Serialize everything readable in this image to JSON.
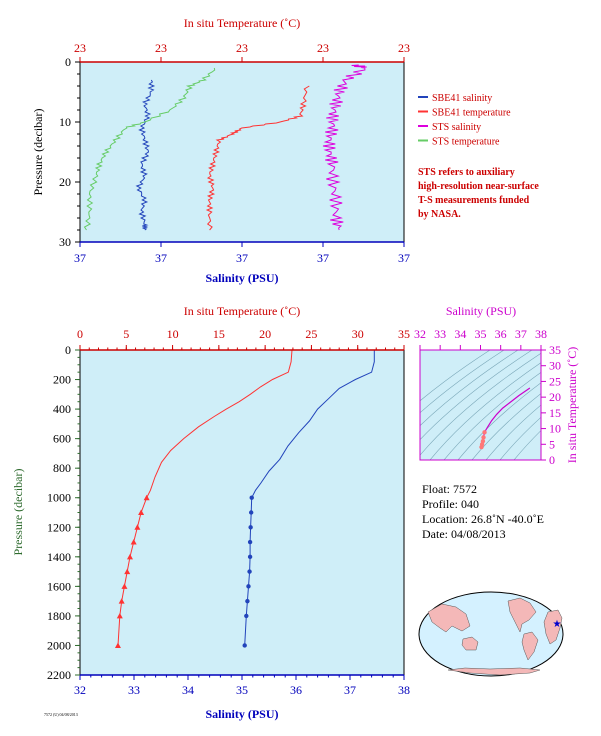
{
  "colors": {
    "plot_bg": "#cfeef8",
    "temp_axis": "#cc0000",
    "sal_axis": "#0000bb",
    "pressure_label": "#2e6b2e",
    "magenta": "#cc00cc",
    "sbe_salinity": "#2244bb",
    "sbe_temperature": "#ff3333",
    "sts_salinity": "#dd00dd",
    "sts_temperature": "#66cc66",
    "note": "#cc0000"
  },
  "top": {
    "top_axis_title": "In situ Temperature (˚C)",
    "top_ticks": [
      "23",
      "23",
      "23",
      "23",
      "23"
    ],
    "bottom_axis_title": "Salinity (PSU)",
    "bottom_ticks": [
      "37",
      "37",
      "37",
      "37",
      "37"
    ],
    "y_axis_title": "Pressure (decibar)",
    "y_ticks": [
      "0",
      "10",
      "20",
      "30"
    ],
    "legend": [
      {
        "label": "SBE41 salinity",
        "color": "#2244bb"
      },
      {
        "label": "SBE41 temperature",
        "color": "#ff3333"
      },
      {
        "label": "STS salinity",
        "color": "#dd00dd"
      },
      {
        "label": "STS temperature",
        "color": "#66cc66"
      }
    ],
    "note_lines": [
      "STS refers to auxiliary",
      "high-resolution near-surface",
      "T-S measurements funded",
      "by NASA."
    ]
  },
  "bottom": {
    "top_axis_title": "In situ Temperature (˚C)",
    "top_ticks": [
      "0",
      "5",
      "10",
      "15",
      "20",
      "25",
      "30",
      "35"
    ],
    "bottom_axis_title": "Salinity (PSU)",
    "bottom_ticks": [
      "32",
      "33",
      "34",
      "35",
      "36",
      "37",
      "38"
    ],
    "y_axis_title": "Pressure (decibar)",
    "y_ticks": [
      "0",
      "200",
      "400",
      "600",
      "800",
      "1000",
      "1200",
      "1400",
      "1600",
      "1800",
      "2000",
      "2200"
    ]
  },
  "ts": {
    "top_axis_title": "Salinity (PSU)",
    "top_ticks": [
      "32",
      "33",
      "34",
      "35",
      "36",
      "37",
      "38"
    ],
    "right_axis_title": "In situ Temperature (˚C)",
    "right_ticks": [
      "0",
      "5",
      "10",
      "15",
      "20",
      "25",
      "30",
      "35"
    ]
  },
  "info": {
    "float": "Float:  7572",
    "profile": "Profile:  040",
    "location": "Location:  26.8˚N  -40.0˚E",
    "date": "Date:  04/08/2013"
  },
  "footer_tag": "7572 (U) 04/08/2013",
  "chart_data": [
    {
      "type": "line",
      "title": "",
      "xlabel": "Salinity (PSU)",
      "x2label": "In situ Temperature (˚C)",
      "ylabel": "Pressure (decibar)",
      "ylim": [
        30,
        0
      ],
      "series": [
        {
          "name": "SBE41 salinity",
          "x_frac": [
            0.22,
            0.22,
            0.2,
            0.21,
            0.19,
            0.2,
            0.21,
            0.19,
            0.2,
            0.18,
            0.2,
            0.19,
            0.2,
            0.2
          ],
          "y": [
            3,
            5,
            7,
            9,
            11,
            13,
            15,
            17,
            19,
            21,
            23,
            25,
            27,
            28
          ]
        },
        {
          "name": "SBE41 temperature",
          "x_frac": [
            0.7,
            0.69,
            0.68,
            0.62,
            0.5,
            0.47,
            0.43,
            0.42,
            0.41,
            0.4,
            0.41,
            0.4,
            0.4,
            0.4
          ],
          "y": [
            4,
            7,
            9,
            10,
            11,
            12,
            13,
            15,
            17,
            19,
            21,
            23,
            25,
            28
          ]
        },
        {
          "name": "STS salinity",
          "x_frac": [
            0.85,
            0.88,
            0.82,
            0.8,
            0.79,
            0.78,
            0.78,
            0.77,
            0.77,
            0.78,
            0.78,
            0.79,
            0.79,
            0.8
          ],
          "y": [
            0.5,
            1,
            3,
            5,
            7,
            9,
            11,
            13,
            15,
            17,
            20,
            23,
            26,
            28
          ]
        },
        {
          "name": "STS temperature",
          "x_frac": [
            0.42,
            0.38,
            0.34,
            0.32,
            0.28,
            0.2,
            0.14,
            0.11,
            0.08,
            0.06,
            0.05,
            0.03,
            0.03,
            0.02
          ],
          "y": [
            1,
            3,
            4,
            6,
            8,
            10,
            11,
            13,
            15,
            17,
            19,
            22,
            25,
            28
          ]
        }
      ]
    },
    {
      "type": "line",
      "title": "",
      "xlabel": "Salinity (PSU)",
      "x2label": "In situ Temperature (˚C)",
      "ylabel": "Pressure (decibar)",
      "xlim": [
        32,
        38
      ],
      "x2lim": [
        0,
        35
      ],
      "ylim": [
        2200,
        0
      ],
      "series": [
        {
          "name": "Salinity",
          "axis": "salinity",
          "x": [
            37.45,
            37.45,
            37.4,
            37.1,
            36.8,
            36.6,
            36.4,
            36.25,
            36.05,
            35.85,
            35.7,
            35.5,
            35.35,
            35.25,
            35.18,
            35.17,
            35.16,
            35.15,
            35.15,
            35.14,
            35.12,
            35.1,
            35.08,
            35.05
          ],
          "y": [
            0,
            80,
            150,
            200,
            260,
            330,
            400,
            480,
            560,
            650,
            740,
            820,
            900,
            950,
            1000,
            1100,
            1200,
            1300,
            1400,
            1500,
            1600,
            1700,
            1800,
            2000
          ]
        },
        {
          "name": "Temperature",
          "axis": "temperature",
          "x": [
            22.9,
            22.8,
            22.5,
            20.8,
            19.5,
            18.4,
            17.2,
            15.8,
            14.5,
            12.8,
            11.2,
            9.8,
            8.8,
            8.1,
            7.6,
            7.2,
            6.6,
            6.2,
            5.8,
            5.4,
            5.1,
            4.8,
            4.5,
            4.3,
            4.1
          ],
          "y": [
            0,
            80,
            150,
            200,
            250,
            300,
            350,
            400,
            450,
            520,
            600,
            680,
            760,
            860,
            950,
            1000,
            1100,
            1200,
            1300,
            1400,
            1500,
            1600,
            1700,
            1800,
            2000
          ]
        }
      ]
    },
    {
      "type": "line",
      "title": "",
      "xlabel": "Salinity (PSU)",
      "ylabel": "In situ Temperature (˚C)",
      "xlim": [
        32,
        38
      ],
      "ylim": [
        0,
        35
      ],
      "series": [
        {
          "name": "T-S",
          "x": [
            35.05,
            35.08,
            35.12,
            35.15,
            35.2,
            35.35,
            35.55,
            35.8,
            36.1,
            36.5,
            36.9,
            37.45
          ],
          "y": [
            4.1,
            5.0,
            6.0,
            7.2,
            8.8,
            10.5,
            12.5,
            14.5,
            16.5,
            18.5,
            20.5,
            22.9
          ]
        }
      ]
    }
  ]
}
